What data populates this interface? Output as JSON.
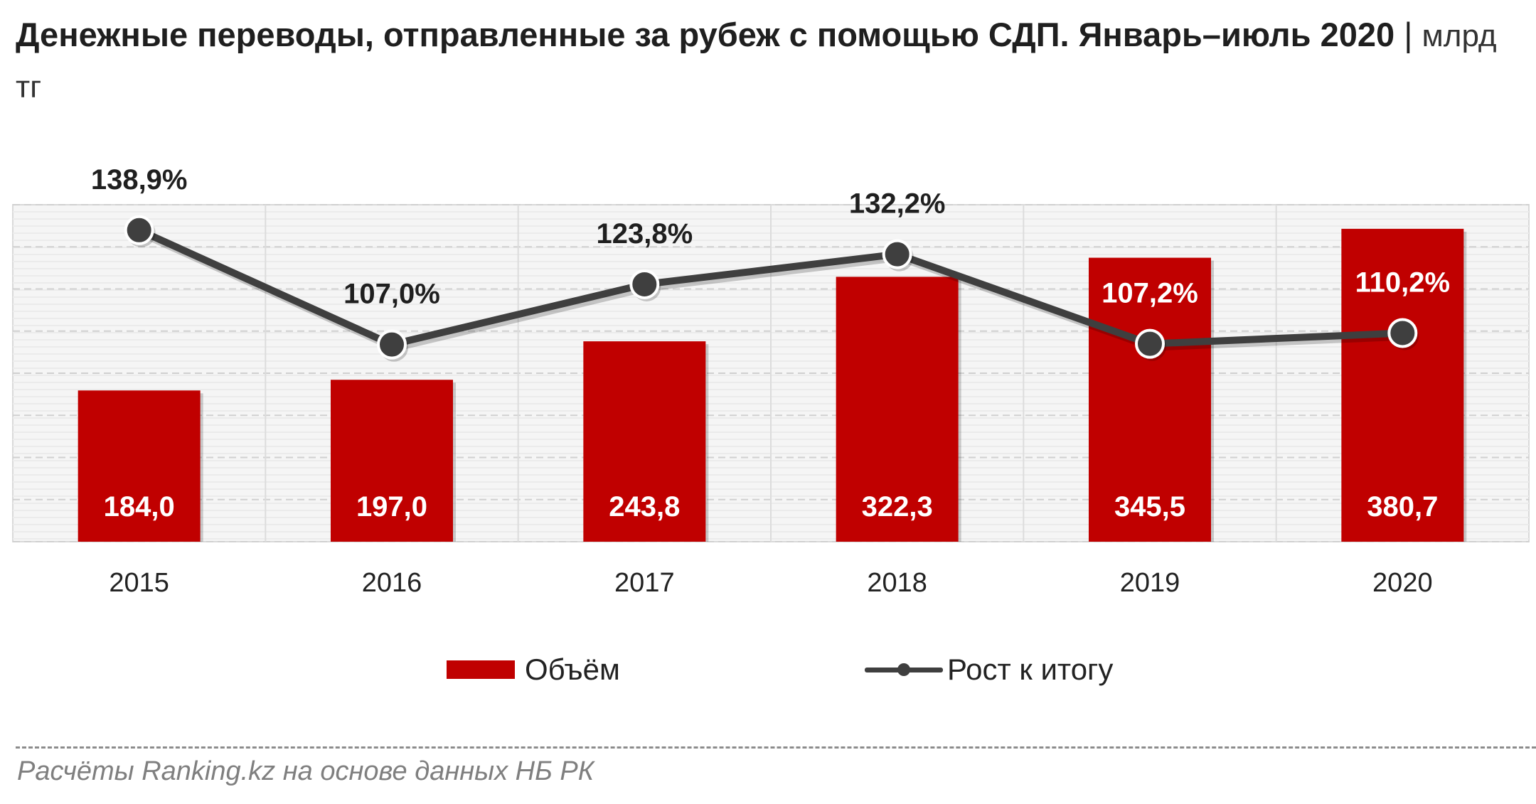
{
  "header": {
    "title": "Денежные переводы, отправленные за рубеж с помощью СДП. Январь–июль 2020",
    "separator": "|",
    "unit": "млрд тг"
  },
  "chart_data": {
    "type": "bar",
    "categories": [
      "2015",
      "2016",
      "2017",
      "2018",
      "2019",
      "2020"
    ],
    "series": [
      {
        "name": "Объём",
        "type": "bar",
        "color": "#c00000",
        "values": [
          184.0,
          197.0,
          243.8,
          322.3,
          345.5,
          380.7
        ],
        "labels": [
          "184,0",
          "197,0",
          "243,8",
          "322,3",
          "345,5",
          "380,7"
        ]
      },
      {
        "name": "Рост к итогу",
        "type": "line",
        "color": "#3f3f3f",
        "values": [
          138.9,
          107.0,
          123.8,
          132.2,
          107.2,
          110.2
        ],
        "labels": [
          "138,9%",
          "107,0%",
          "123,8%",
          "132,2%",
          "107,2%",
          "110,2%"
        ]
      }
    ],
    "legend_position": "bottom",
    "grid": true
  },
  "source": "Расчёты Ranking.kz на основе данных НБ РК"
}
